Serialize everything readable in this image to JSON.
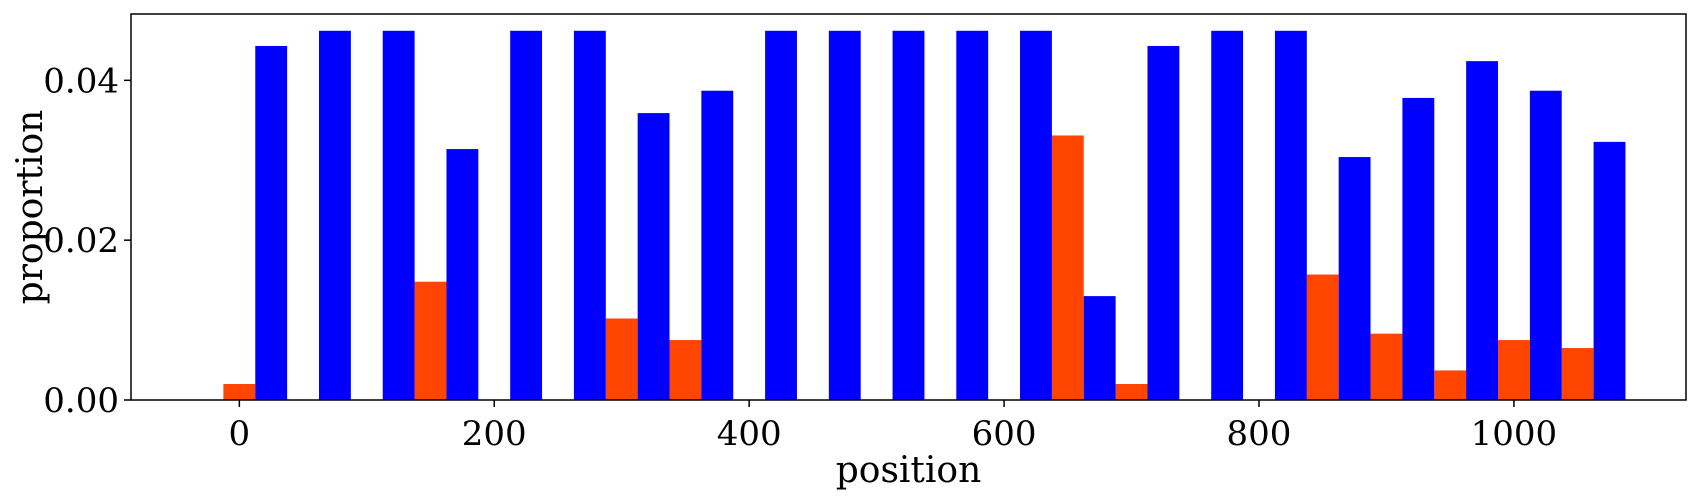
{
  "chart_data": {
    "type": "bar",
    "xlabel": "position",
    "ylabel": "proportion",
    "xlim": [
      -85,
      1135
    ],
    "ylim": [
      0,
      0.0483
    ],
    "bar_width": 25,
    "x_ticks": [
      {
        "value": 0,
        "label": "0"
      },
      {
        "value": 200,
        "label": "200"
      },
      {
        "value": 400,
        "label": "400"
      },
      {
        "value": 600,
        "label": "600"
      },
      {
        "value": 800,
        "label": "800"
      },
      {
        "value": 1000,
        "label": "1000"
      }
    ],
    "y_ticks": [
      {
        "value": 0.0,
        "label": "0.00"
      },
      {
        "value": 0.02,
        "label": "0.02"
      },
      {
        "value": 0.04,
        "label": "0.04"
      }
    ],
    "series": [
      {
        "color": "#FF4500",
        "points": [
          {
            "x": 0,
            "y": 0.002
          },
          {
            "x": 150,
            "y": 0.0148
          },
          {
            "x": 300,
            "y": 0.0102
          },
          {
            "x": 350,
            "y": 0.0075
          },
          {
            "x": 650,
            "y": 0.0331
          },
          {
            "x": 700,
            "y": 0.002
          },
          {
            "x": 850,
            "y": 0.0157
          },
          {
            "x": 900,
            "y": 0.0083
          },
          {
            "x": 950,
            "y": 0.0037
          },
          {
            "x": 1000,
            "y": 0.0075
          },
          {
            "x": 1050,
            "y": 0.0065
          }
        ]
      },
      {
        "color": "#0000FF",
        "points": [
          {
            "x": 25,
            "y": 0.0443
          },
          {
            "x": 75,
            "y": 0.0462
          },
          {
            "x": 125,
            "y": 0.0462
          },
          {
            "x": 175,
            "y": 0.0314
          },
          {
            "x": 225,
            "y": 0.0462
          },
          {
            "x": 275,
            "y": 0.0462
          },
          {
            "x": 325,
            "y": 0.0359
          },
          {
            "x": 375,
            "y": 0.0387
          },
          {
            "x": 425,
            "y": 0.0462
          },
          {
            "x": 475,
            "y": 0.0462
          },
          {
            "x": 525,
            "y": 0.0462
          },
          {
            "x": 575,
            "y": 0.0462
          },
          {
            "x": 625,
            "y": 0.0462
          },
          {
            "x": 675,
            "y": 0.013
          },
          {
            "x": 725,
            "y": 0.0443
          },
          {
            "x": 775,
            "y": 0.0462
          },
          {
            "x": 825,
            "y": 0.0462
          },
          {
            "x": 875,
            "y": 0.0304
          },
          {
            "x": 925,
            "y": 0.0378
          },
          {
            "x": 975,
            "y": 0.0424
          },
          {
            "x": 1025,
            "y": 0.0387
          },
          {
            "x": 1075,
            "y": 0.0323
          }
        ]
      }
    ]
  }
}
